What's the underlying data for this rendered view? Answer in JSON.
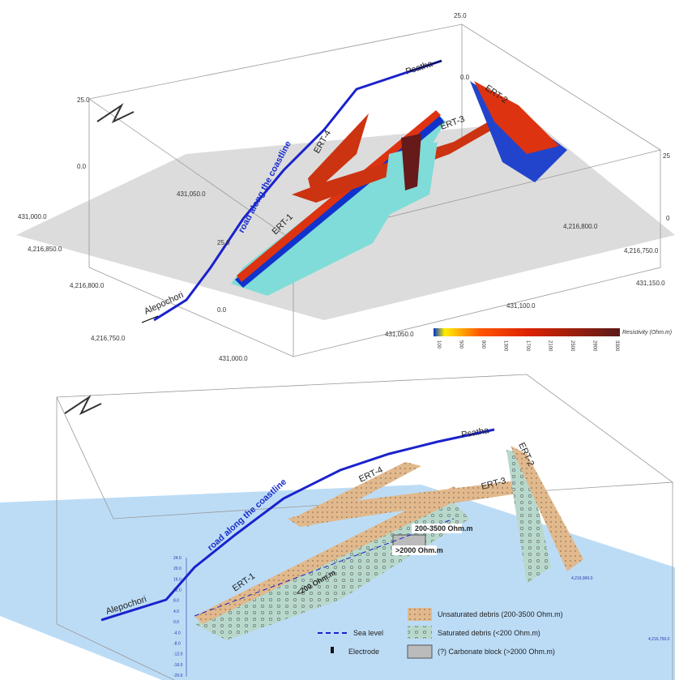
{
  "top_panel": {
    "axis_labels": {
      "z_top_right": "25.0",
      "z_left_top": "25.0",
      "z_left_zero": "0.0",
      "z_ert2": "0.0",
      "z_right_top": "25",
      "z_right_zero": "0",
      "z_front_top": "25.0",
      "z_front_zero": "0.0",
      "x_back_1": "431,050.0",
      "x_back_2": "431,000.0",
      "y_left_1": "4,216,850.0",
      "y_left_2": "4,216,800.0",
      "y_left_3": "4,216,750.0",
      "x_front_1": "431,000.0",
      "x_front_2": "431,050.0",
      "x_front_3": "431,100.0",
      "x_front_4": "431,150.0",
      "y_right_1": "4,216,750.0",
      "y_right_2": "4,216,800.0"
    },
    "profiles": {
      "ert1": "ERT-1",
      "ert2": "ERT-2",
      "ert3": "ERT-3",
      "ert4": "ERT-4"
    },
    "road": "road along the coastline",
    "north_end": "Psatha",
    "south_end": "Alepochori",
    "colorbar": {
      "title": "Resistivity (Ohm.m)",
      "ticks": [
        "100",
        "500",
        "900",
        "1300",
        "1700",
        "2100",
        "2500",
        "2900",
        "3300"
      ]
    }
  },
  "bottom_panel": {
    "profiles": {
      "ert1": "ERT-1",
      "ert2": "ERT-2",
      "ert3": "ERT-3",
      "ert4": "ERT-4"
    },
    "road": "road along the coastline",
    "north_end": "Psatha",
    "south_end": "Alepochori",
    "zone_labels": {
      "unsat": "200-3500 Ohm.m",
      "block": ">2000 Ohm.m",
      "sat": "<200 Ohm.m"
    },
    "z_ticks": [
      "24.0",
      "20.0",
      "16.0",
      "12.0",
      "8.0",
      "4.0",
      "0.0",
      "-4.0",
      "-8.0",
      "-12.0",
      "-16.0",
      "-20.0"
    ],
    "y_labels": {
      "y1": "4,216,900.0",
      "y2": "4,216,750.0"
    },
    "legend": {
      "unsat": "Unsaturated debris (200-3500 Ohm.m)",
      "sea": "Sea level",
      "sat": "Saturated debris (<200 Ohm.m)",
      "electrode": "Electrode",
      "block": "(?) Carbonate block (>2000 Ohm.m)"
    }
  }
}
